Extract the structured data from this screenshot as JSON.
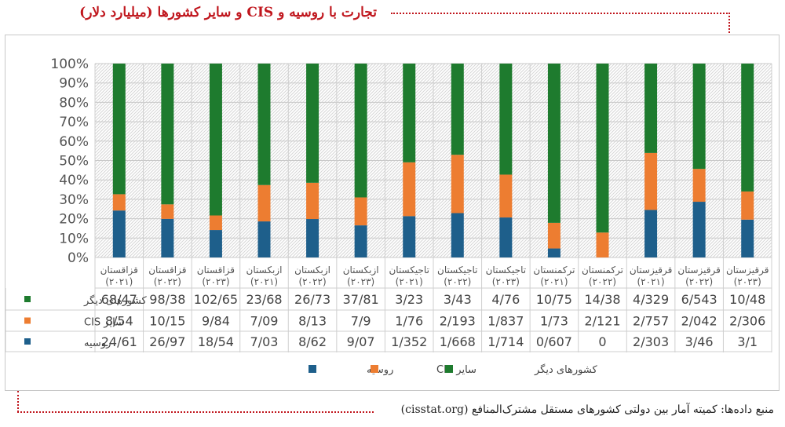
{
  "title": "تجارت با روسیه و CIS و سایر کشورها (میلیارد دلار)",
  "source": "منبع داده‌ها: کمیته آمار بین دولتی کشورهای مستقل مشترک‌المنافع (cisstat.org)",
  "colors": {
    "russia": "#1e5f8b",
    "cis": "#ed7d31",
    "other": "#1e7b2e"
  },
  "chart_data": {
    "type": "bar",
    "stacked": true,
    "normalized": true,
    "y_ticks": [
      "0%",
      "10%",
      "20%",
      "30%",
      "40%",
      "50%",
      "60%",
      "70%",
      "80%",
      "90%",
      "100%"
    ],
    "ylim": [
      0,
      100
    ],
    "categories": [
      {
        "name": "قزاقستان",
        "year": "(۲۰۲۱)"
      },
      {
        "name": "قزاقستان",
        "year": "(۲۰۲۲)"
      },
      {
        "name": "قزاقستان",
        "year": "(۲۰۲۳)"
      },
      {
        "name": "ازبکستان",
        "year": "(۲۰۲۱)"
      },
      {
        "name": "ازبکستان",
        "year": "(۲۰۲۲)"
      },
      {
        "name": "ازبکستان",
        "year": "(۲۰۲۳)"
      },
      {
        "name": "تاجیکستان",
        "year": "(۲۰۲۱)"
      },
      {
        "name": "تاجیکستان",
        "year": "(۲۰۲۲)"
      },
      {
        "name": "تاجیکستان",
        "year": "(۲۰۲۳)"
      },
      {
        "name": "ترکمنستان",
        "year": "(۲۰۲۱)"
      },
      {
        "name": "ترکمنستان",
        "year": "(۲۰۲۲)"
      },
      {
        "name": "قرقیزستان",
        "year": "(۲۰۲۱)"
      },
      {
        "name": "قرقیزستان",
        "year": "(۲۰۲۲)"
      },
      {
        "name": "قرقیزستان",
        "year": "(۲۰۲۳)"
      }
    ],
    "series": [
      {
        "key": "other",
        "name": "کشورهای دیگر",
        "labels": [
          "68/47",
          "98/38",
          "102/65",
          "23/68",
          "26/73",
          "37/81",
          "3/23",
          "3/43",
          "4/76",
          "10/75",
          "14/38",
          "4/329",
          "6/543",
          "10/48"
        ],
        "values": [
          68.47,
          98.38,
          102.65,
          23.68,
          26.73,
          37.81,
          3.23,
          3.43,
          4.76,
          10.75,
          14.38,
          4.329,
          6.543,
          10.48
        ]
      },
      {
        "key": "cis",
        "name": "سایر CIS",
        "labels": [
          "8/54",
          "10/15",
          "9/84",
          "7/09",
          "8/13",
          "7/9",
          "1/76",
          "2/193",
          "1/837",
          "1/73",
          "2/121",
          "2/757",
          "2/042",
          "2/306"
        ],
        "values": [
          8.54,
          10.15,
          9.84,
          7.09,
          8.13,
          7.9,
          1.76,
          2.193,
          1.837,
          1.73,
          2.121,
          2.757,
          2.042,
          2.306
        ]
      },
      {
        "key": "russia",
        "name": "روسیه",
        "labels": [
          "24/61",
          "26/97",
          "18/54",
          "7/03",
          "8/62",
          "9/07",
          "1/352",
          "1/668",
          "1/714",
          "0/607",
          "0",
          "2/303",
          "3/46",
          "3/1"
        ],
        "values": [
          24.61,
          26.97,
          18.54,
          7.03,
          8.62,
          9.07,
          1.352,
          1.668,
          1.714,
          0.607,
          0,
          2.303,
          3.46,
          3.1
        ]
      }
    ],
    "legend": {
      "position": "bottom",
      "items": [
        {
          "key": "russia",
          "label": "روسیه"
        },
        {
          "key": "cis",
          "label": "سایر CIS"
        },
        {
          "key": "other",
          "label": "کشورهای دیگر"
        }
      ]
    }
  }
}
